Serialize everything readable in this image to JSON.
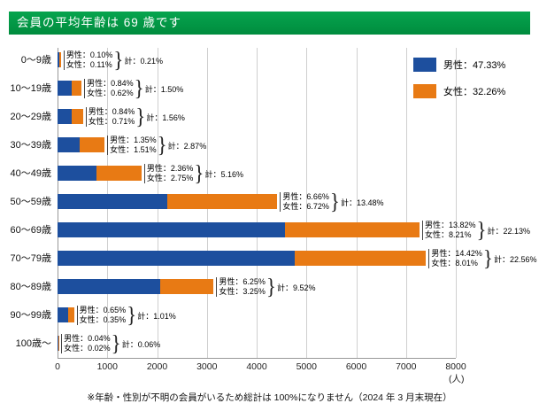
{
  "title_bar": {
    "text": "会員の平均年齢は 69 歳です"
  },
  "legend": {
    "items": [
      {
        "name": "male",
        "label": "男性：47.33%",
        "color": "#1d4f9e"
      },
      {
        "name": "female",
        "label": "女性：32.26%",
        "color": "#e87a14"
      }
    ]
  },
  "rows": [
    {
      "age": "0～9歳",
      "male": "男性：0.10%",
      "female": "女性：0.11%",
      "total": "計：0.21%"
    },
    {
      "age": "10～19歳",
      "male": "男性：0.84%",
      "female": "女性：0.62%",
      "total": "計：1.50%"
    },
    {
      "age": "20～29歳",
      "male": "男性：0.84%",
      "female": "女性：0.71%",
      "total": "計：1.56%"
    },
    {
      "age": "30～39歳",
      "male": "男性：1.35%",
      "female": "女性：1.51%",
      "total": "計：2.87%"
    },
    {
      "age": "40～49歳",
      "male": "男性：2.36%",
      "female": "女性：2.75%",
      "total": "計：5.16%"
    },
    {
      "age": "50～59歳",
      "male": "男性：6.66%",
      "female": "女性：6.72%",
      "total": "計：13.48%"
    },
    {
      "age": "60～69歳",
      "male": "男性：13.82%",
      "female": "女性：8.21%",
      "total": "計：22.13%"
    },
    {
      "age": "70～79歳",
      "male": "男性：14.42%",
      "female": "女性：8.01%",
      "total": "計：22.56%"
    },
    {
      "age": "80～89歳",
      "male": "男性：6.25%",
      "female": "女性：3.25%",
      "total": "計：9.52%"
    },
    {
      "age": "90～99歳",
      "male": "男性：0.65%",
      "female": "女性：0.35%",
      "total": "計：1.01%"
    },
    {
      "age": "100歳～",
      "male": "男性：0.04%",
      "female": "女性：0.02%",
      "total": "計：0.06%"
    }
  ],
  "x_axis": {
    "tick_labels": [
      "0",
      "1000",
      "2000",
      "3000",
      "4000",
      "5000",
      "6000",
      "7000",
      "8000"
    ],
    "unit": "(人)"
  },
  "footnote": "※年齢・性別が不明の会員がいるため総計は 100%になりません（2024 年 3 月末現在）",
  "colors": {
    "male": "#1d4f9e",
    "female": "#e87a14",
    "grid": "#cfcfcf",
    "axis": "#999999",
    "title_green": "#00a047"
  },
  "chart_data": {
    "type": "bar",
    "orientation": "horizontal",
    "stacked": true,
    "title": "会員の平均年齢は 69 歳です",
    "categories": [
      "0～9歳",
      "10～19歳",
      "20～29歳",
      "30～39歳",
      "40～49歳",
      "50～59歳",
      "60～69歳",
      "70～79歳",
      "80～89歳",
      "90～99歳",
      "100歳～"
    ],
    "series": [
      {
        "name": "男性",
        "total_percent": 47.33,
        "percent": [
          0.1,
          0.84,
          0.84,
          1.35,
          2.36,
          6.66,
          13.82,
          14.42,
          6.25,
          0.65,
          0.04
        ],
        "people_est": [
          33,
          277,
          277,
          446,
          779,
          2198,
          4561,
          4759,
          2063,
          215,
          13
        ]
      },
      {
        "name": "女性",
        "total_percent": 32.26,
        "percent": [
          0.11,
          0.62,
          0.71,
          1.51,
          2.75,
          6.72,
          8.21,
          8.01,
          3.25,
          0.35,
          0.02
        ],
        "people_est": [
          36,
          205,
          234,
          498,
          908,
          2218,
          2709,
          2643,
          1073,
          116,
          7
        ]
      }
    ],
    "totals_percent": [
      0.21,
      1.5,
      1.56,
      2.87,
      5.16,
      13.48,
      22.13,
      22.56,
      9.52,
      1.01,
      0.06
    ],
    "xlabel": "(人)",
    "x_range": [
      0,
      8000
    ],
    "x_tick_step": 1000,
    "grid": true,
    "legend_position": "top-right",
    "note": "※年齢・性別が不明の会員がいるため総計は 100%になりません（2024 年 3 月末現在）"
  }
}
